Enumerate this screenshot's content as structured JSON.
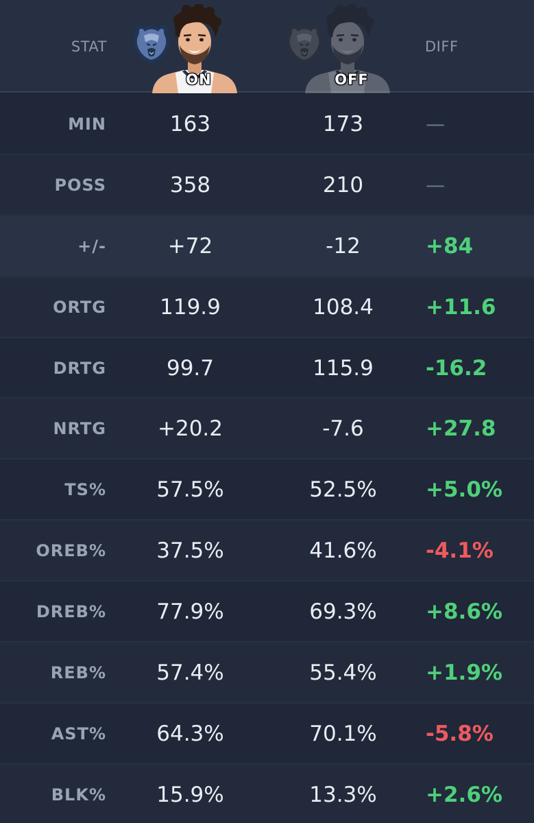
{
  "header": {
    "stat_label": "STAT",
    "on_label": "ON",
    "off_label": "OFF",
    "diff_label": "DIFF"
  },
  "colors": {
    "positive": "#4fd07a",
    "negative": "#ee5a5f",
    "team_blue": "#5d76a9"
  },
  "icons": {
    "team_logo": "grizzlies-bear-logo-icon",
    "player": "player-avatar-icon"
  },
  "rows": [
    {
      "stat": "MIN",
      "on": "163",
      "off": "173",
      "diff": "—",
      "sign": "neutral"
    },
    {
      "stat": "POSS",
      "on": "358",
      "off": "210",
      "diff": "—",
      "sign": "neutral"
    },
    {
      "stat": "+/-",
      "on": "+72",
      "off": "-12",
      "diff": "+84",
      "sign": "pos"
    },
    {
      "stat": "ORTG",
      "on": "119.9",
      "off": "108.4",
      "diff": "+11.6",
      "sign": "pos"
    },
    {
      "stat": "DRTG",
      "on": "99.7",
      "off": "115.9",
      "diff": "-16.2",
      "sign": "pos"
    },
    {
      "stat": "NRTG",
      "on": "+20.2",
      "off": "-7.6",
      "diff": "+27.8",
      "sign": "pos"
    },
    {
      "stat": "TS%",
      "on": "57.5%",
      "off": "52.5%",
      "diff": "+5.0%",
      "sign": "pos"
    },
    {
      "stat": "OREB%",
      "on": "37.5%",
      "off": "41.6%",
      "diff": "-4.1%",
      "sign": "neg"
    },
    {
      "stat": "DREB%",
      "on": "77.9%",
      "off": "69.3%",
      "diff": "+8.6%",
      "sign": "pos"
    },
    {
      "stat": "REB%",
      "on": "57.4%",
      "off": "55.4%",
      "diff": "+1.9%",
      "sign": "pos"
    },
    {
      "stat": "AST%",
      "on": "64.3%",
      "off": "70.1%",
      "diff": "-5.8%",
      "sign": "neg"
    },
    {
      "stat": "BLK%",
      "on": "15.9%",
      "off": "13.3%",
      "diff": "+2.6%",
      "sign": "pos"
    }
  ]
}
